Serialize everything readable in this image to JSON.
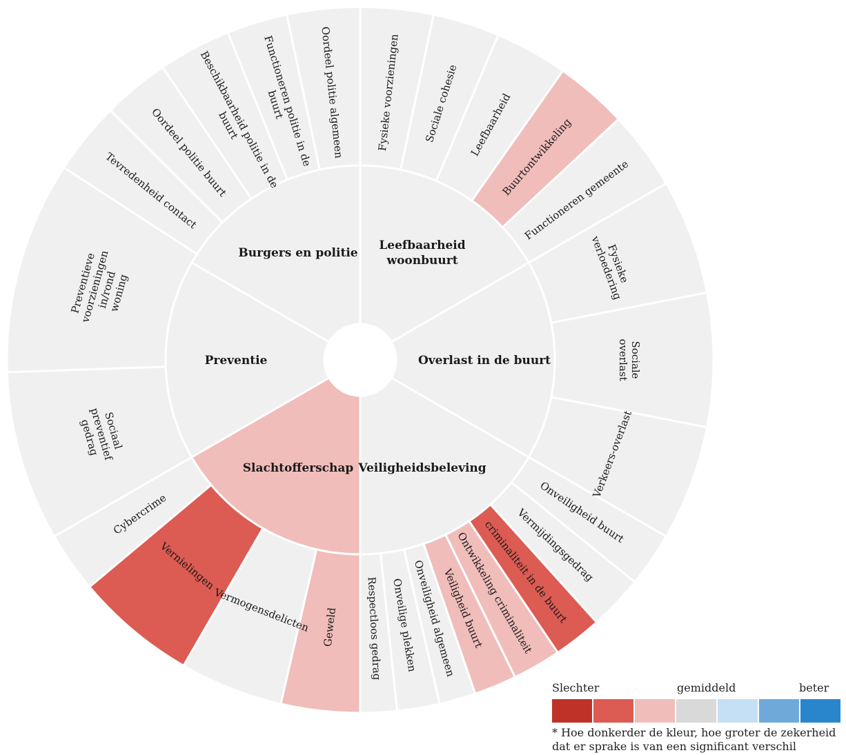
{
  "colors": {
    "neutral": "#f0f0f0",
    "light_red": "#f0bdbb",
    "medium_red": "#dc5b52",
    "separator": "#ffffff"
  },
  "categories": [
    {
      "name": "Burgers en politie",
      "color": "neutral",
      "items": [
        {
          "label": "Tevredenheid contact",
          "color": "neutral"
        },
        {
          "label": "Oordeel politie buurt",
          "color": "neutral"
        },
        {
          "label": "Beschikbaarheid politie in de buurt",
          "color": "neutral"
        },
        {
          "label": "Functioneren politie in de buurt",
          "color": "neutral"
        },
        {
          "label": "Oordeel politie algemeen",
          "color": "neutral"
        }
      ]
    },
    {
      "name": "Leefbaarheid woonbuurt",
      "color": "neutral",
      "items": [
        {
          "label": "Fysieke voorzieningen",
          "color": "neutral"
        },
        {
          "label": "Sociale cohesie",
          "color": "neutral"
        },
        {
          "label": "Leefbaarheid",
          "color": "neutral"
        },
        {
          "label": "Buurtontwikkeling",
          "color": "light_red"
        },
        {
          "label": "Functioneren gemeente",
          "color": "neutral"
        }
      ]
    },
    {
      "name": "Overlast in de buurt",
      "color": "neutral",
      "items": [
        {
          "label": "Fysieke verloedering",
          "color": "neutral"
        },
        {
          "label": "Sociale overlast",
          "color": "neutral"
        },
        {
          "label": "Verkeers-overlast",
          "color": "neutral"
        }
      ]
    },
    {
      "name": "Veiligheidsbeleving",
      "color": "neutral",
      "items": [
        {
          "label": "Onveiligheid buurt",
          "color": "neutral"
        },
        {
          "label": "Vermijdingsgedrag",
          "color": "neutral"
        },
        {
          "label": "criminaliteit in de buurt",
          "color": "medium_red"
        },
        {
          "label": "Ontwikkeling criminaliteit",
          "color": "light_red"
        },
        {
          "label": "Veiligheid buurt",
          "color": "light_red"
        },
        {
          "label": "Onveiligheid algemeen",
          "color": "neutral"
        },
        {
          "label": "Onveilige plekken",
          "color": "neutral"
        },
        {
          "label": "Respectloos gedrag",
          "color": "neutral"
        }
      ]
    },
    {
      "name": "Slachtofferschap",
      "color": "light_red",
      "items": [
        {
          "label": "Geweld",
          "color": "light_red"
        },
        {
          "label": "Vermogensdelicten",
          "color": "neutral"
        },
        {
          "label": "Vernielingen",
          "color": "medium_red"
        },
        {
          "label": "Cybercrime",
          "color": "neutral"
        }
      ]
    },
    {
      "name": "Preventie",
      "color": "neutral",
      "items": [
        {
          "label": "Sociaal preventief gedrag",
          "color": "neutral"
        },
        {
          "label": "Preventieve voorzieningen in/rond woning",
          "color": "neutral"
        }
      ]
    }
  ],
  "legend": {
    "worse_label": "Slechter",
    "average_label": "gemiddeld",
    "better_label": "beter",
    "swatches": [
      "#bf3228",
      "#dc5b52",
      "#f0bdbb",
      "#d9d9d9",
      "#c5dff4",
      "#6ea9d9",
      "#2a86cc"
    ],
    "note": "* Hoe donkerder de kleur, hoe groter de zekerheid dat er sprake is van een significant verschil"
  }
}
